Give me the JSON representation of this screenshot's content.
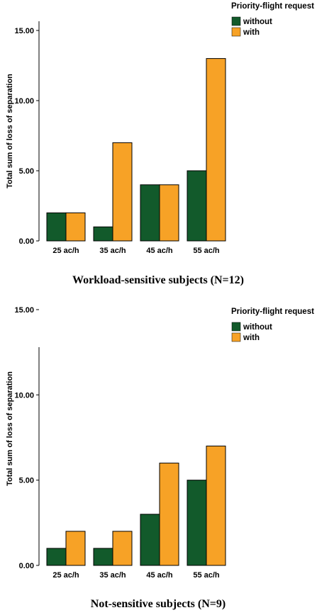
{
  "chart_data": [
    {
      "type": "bar",
      "title": "Workload-sensitive subjects (N=12)",
      "ylabel": "Total sum of loss of separation",
      "xlabel": "",
      "categories": [
        "25 ac/h",
        "35 ac/h",
        "45 ac/h",
        "55 ac/h"
      ],
      "series": [
        {
          "name": "without",
          "color": "#125a2b",
          "values": [
            2,
            1,
            4,
            5
          ]
        },
        {
          "name": "with",
          "color": "#f7a226",
          "values": [
            2,
            7,
            4,
            13
          ]
        }
      ],
      "ylim": [
        0,
        15
      ],
      "yticks": [
        "0.00",
        "5.00",
        "10.00",
        "15.00"
      ],
      "legend_title": "Priority-flight request",
      "legend_position": "top-right",
      "grid": false
    },
    {
      "type": "bar",
      "title": "Not-sensitive subjects (N=9)",
      "ylabel": "Total sum of loss of separation",
      "xlabel": "",
      "categories": [
        "25 ac/h",
        "35 ac/h",
        "45 ac/h",
        "55 ac/h"
      ],
      "series": [
        {
          "name": "without",
          "color": "#125a2b",
          "values": [
            1,
            1,
            3,
            5
          ]
        },
        {
          "name": "with",
          "color": "#f7a226",
          "values": [
            2,
            2,
            6,
            7
          ]
        }
      ],
      "ylim": [
        0,
        15
      ],
      "yticks": [
        "0.00",
        "5.00",
        "10.00",
        "15.00"
      ],
      "legend_title": "Priority-flight request",
      "legend_position": "top-right",
      "grid": false
    }
  ]
}
